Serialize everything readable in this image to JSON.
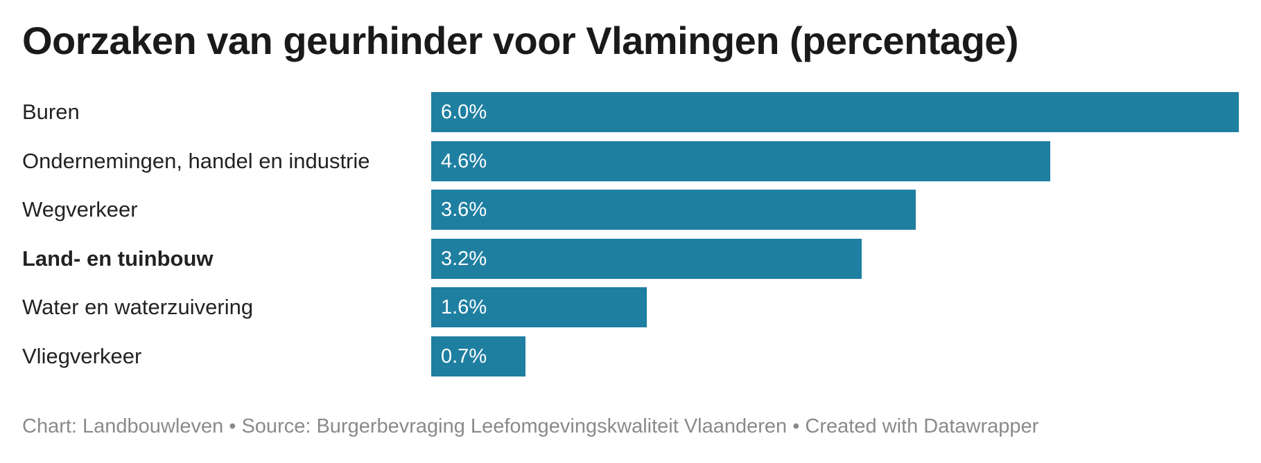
{
  "title": "Oorzaken van geurhinder voor Vlamingen (percentage)",
  "footer": "Chart: Landbouwleven • Source: Burgerbevraging Leefomgevingskwaliteit Vlaanderen • Created with Datawrapper",
  "colors": {
    "bar": "#1f7fa1",
    "bar_label": "#ffffff",
    "footer": "#8a8a8a"
  },
  "chart_data": {
    "type": "bar",
    "orientation": "horizontal",
    "title": "Oorzaken van geurhinder voor Vlamingen (percentage)",
    "categories": [
      "Buren",
      "Ondernemingen, handel en industrie",
      "Wegverkeer",
      "Land- en tuinbouw",
      "Water en waterzuivering",
      "Vliegverkeer"
    ],
    "values": [
      6.0,
      4.6,
      3.6,
      3.2,
      1.6,
      0.7
    ],
    "value_labels": [
      "6.0%",
      "4.6%",
      "3.6%",
      "3.2%",
      "1.6%",
      "0.7%"
    ],
    "highlighted_category": "Land- en tuinbouw",
    "xlim": [
      0,
      6.0
    ],
    "grid": false,
    "legend": "none"
  }
}
